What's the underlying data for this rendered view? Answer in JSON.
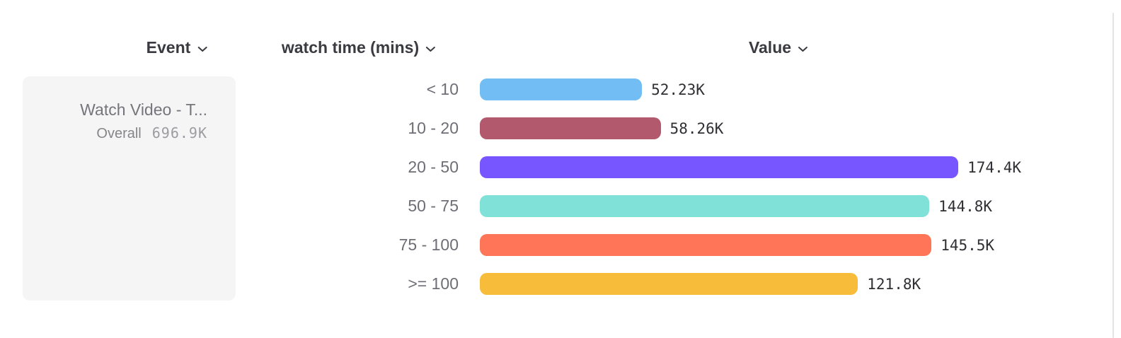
{
  "header": {
    "event_label": "Event",
    "breakdown_label": "watch time (mins)",
    "value_label": "Value"
  },
  "event_card": {
    "name": "Watch Video - T...",
    "overall_label": "Overall",
    "overall_value": "696.9K"
  },
  "chart_data": {
    "type": "bar",
    "orientation": "horizontal",
    "title": "",
    "xlabel": "Value",
    "ylabel": "watch time (mins)",
    "xlim": [
      0,
      174.4
    ],
    "grid": false,
    "categories": [
      "< 10",
      "10 - 20",
      "20 - 50",
      "50 - 75",
      "75 - 100",
      ">= 100"
    ],
    "values": [
      52.23,
      58.26,
      174.4,
      144.8,
      145.5,
      121.8
    ],
    "value_labels": [
      "52.23K",
      "58.26K",
      "174.4K",
      "144.8K",
      "145.5K",
      "121.8K"
    ],
    "bar_colors": [
      "#72BEF4",
      "#B2596E",
      "#7856FF",
      "#80E1D9",
      "#FF7557",
      "#F8BC3B"
    ]
  },
  "icons": {
    "chevron_down": "chevron-down"
  }
}
